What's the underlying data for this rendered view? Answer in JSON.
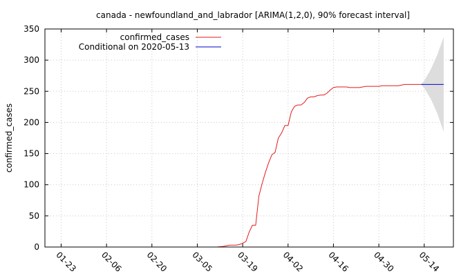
{
  "chart_data": {
    "type": "line",
    "title": "canada - newfoundland_and_labrador [ARIMA(1,2,0), 90% forecast interval]",
    "xlabel": "",
    "ylabel": "confirmed_cases",
    "x_axis_type": "date",
    "xlim": [
      "2020-01-18",
      "2020-05-23"
    ],
    "ylim": [
      0,
      350
    ],
    "yticks": [
      0,
      50,
      100,
      150,
      200,
      250,
      300,
      350
    ],
    "xticks": [
      "2020-01-23",
      "2020-02-06",
      "2020-02-20",
      "2020-03-05",
      "2020-03-19",
      "2020-04-02",
      "2020-04-16",
      "2020-04-30",
      "2020-05-14"
    ],
    "xtick_labels": [
      "01-23",
      "02-06",
      "02-20",
      "03-05",
      "03-19",
      "04-02",
      "04-16",
      "04-30",
      "05-14"
    ],
    "grid": true,
    "legend_position": "top-left",
    "series": [
      {
        "name": "confirmed_cases",
        "color": "#e41a1c",
        "points": [
          [
            "2020-03-11",
            0
          ],
          [
            "2020-03-13",
            1
          ],
          [
            "2020-03-15",
            3
          ],
          [
            "2020-03-17",
            3
          ],
          [
            "2020-03-18",
            4
          ],
          [
            "2020-03-19",
            6
          ],
          [
            "2020-03-20",
            9
          ],
          [
            "2020-03-21",
            24
          ],
          [
            "2020-03-22",
            35
          ],
          [
            "2020-03-23",
            35
          ],
          [
            "2020-03-24",
            82
          ],
          [
            "2020-03-25",
            102
          ],
          [
            "2020-03-26",
            120
          ],
          [
            "2020-03-27",
            135
          ],
          [
            "2020-03-28",
            148
          ],
          [
            "2020-03-29",
            152
          ],
          [
            "2020-03-30",
            175
          ],
          [
            "2020-03-31",
            183
          ],
          [
            "2020-04-01",
            195
          ],
          [
            "2020-04-02",
            195
          ],
          [
            "2020-04-03",
            217
          ],
          [
            "2020-04-04",
            226
          ],
          [
            "2020-04-05",
            228
          ],
          [
            "2020-04-06",
            228
          ],
          [
            "2020-04-07",
            232
          ],
          [
            "2020-04-08",
            239
          ],
          [
            "2020-04-09",
            241
          ],
          [
            "2020-04-10",
            241
          ],
          [
            "2020-04-11",
            243
          ],
          [
            "2020-04-12",
            244
          ],
          [
            "2020-04-13",
            244
          ],
          [
            "2020-04-14",
            247
          ],
          [
            "2020-04-15",
            252
          ],
          [
            "2020-04-16",
            256
          ],
          [
            "2020-04-17",
            257
          ],
          [
            "2020-04-20",
            257
          ],
          [
            "2020-04-21",
            256
          ],
          [
            "2020-04-24",
            256
          ],
          [
            "2020-04-25",
            257
          ],
          [
            "2020-04-26",
            258
          ],
          [
            "2020-04-30",
            258
          ],
          [
            "2020-05-01",
            259
          ],
          [
            "2020-05-06",
            259
          ],
          [
            "2020-05-07",
            260
          ],
          [
            "2020-05-08",
            261
          ],
          [
            "2020-05-13",
            261
          ]
        ]
      },
      {
        "name": "Conditional on 2020-05-13",
        "color": "#0000cc",
        "points": [
          [
            "2020-05-13",
            261
          ],
          [
            "2020-05-20",
            261
          ]
        ]
      }
    ],
    "forecast_interval": {
      "level": "90%",
      "color": "#dddddd",
      "lower": [
        [
          "2020-05-13",
          261
        ],
        [
          "2020-05-14",
          255
        ],
        [
          "2020-05-16",
          238
        ],
        [
          "2020-05-18",
          215
        ],
        [
          "2020-05-20",
          185
        ]
      ],
      "upper": [
        [
          "2020-05-13",
          261
        ],
        [
          "2020-05-14",
          267
        ],
        [
          "2020-05-16",
          285
        ],
        [
          "2020-05-18",
          308
        ],
        [
          "2020-05-20",
          337
        ]
      ]
    }
  }
}
